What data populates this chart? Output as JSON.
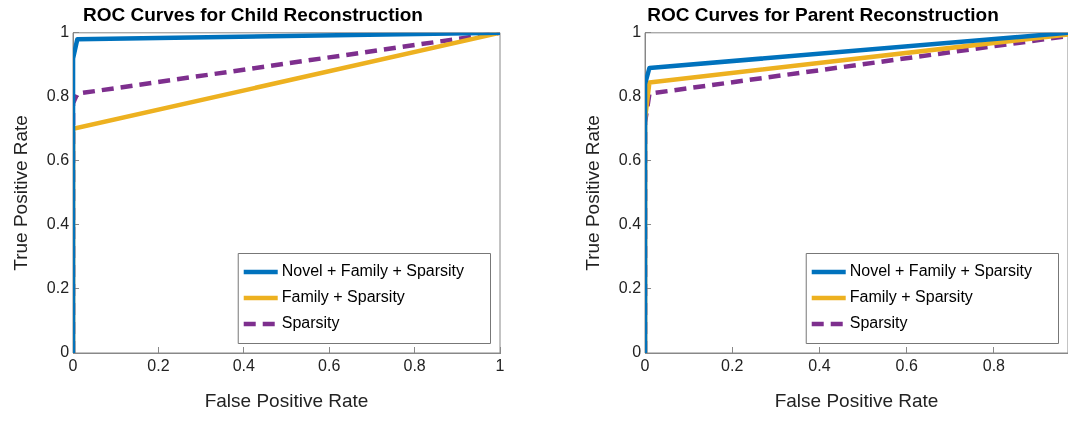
{
  "chart_data": [
    {
      "type": "line",
      "title": "ROC Curves for Child Reconstruction",
      "xlabel": "False Positive Rate",
      "ylabel": "True Positive Rate",
      "xlim": [
        0,
        1
      ],
      "ylim": [
        0,
        1
      ],
      "xticks": [
        0,
        0.2,
        0.4,
        0.6,
        0.8,
        1
      ],
      "yticks": [
        0,
        0.2,
        0.4,
        0.6,
        0.8,
        1
      ],
      "grid": false,
      "legend": "bottom right",
      "marker": "none",
      "series": [
        {
          "name": "Novel + Family + Sparsity",
          "color": "#0072bd",
          "x": [
            0,
            0,
            0.01,
            1
          ],
          "values": [
            0,
            0.92,
            0.98,
            1
          ]
        },
        {
          "name": "Family + Sparsity",
          "color": "#edb120",
          "x": [
            0,
            0,
            1
          ],
          "values": [
            0,
            0.7,
            1
          ]
        },
        {
          "name": "Sparsity",
          "color": "#7e2f8e",
          "line_style": "dashed",
          "x": [
            0,
            0,
            0.01,
            1
          ],
          "values": [
            0,
            0.78,
            0.81,
            1
          ]
        }
      ]
    },
    {
      "type": "line",
      "title": "ROC Curves for Parent Reconstruction",
      "xlabel": "False Positive Rate",
      "ylabel": "True Positive Rate",
      "xlim": [
        0,
        0.97
      ],
      "ylim": [
        0,
        1
      ],
      "xticks": [
        0,
        0.2,
        0.4,
        0.6,
        0.8
      ],
      "yticks": [
        0,
        0.2,
        0.4,
        0.6,
        0.8,
        1
      ],
      "grid": false,
      "legend": "bottom right",
      "marker": "none",
      "series": [
        {
          "name": "Novel + Family + Sparsity",
          "color": "#0072bd",
          "x": [
            0,
            0,
            0.01,
            0.97
          ],
          "values": [
            0,
            0.84,
            0.89,
            1
          ]
        },
        {
          "name": "Family + Sparsity",
          "color": "#edb120",
          "x": [
            0,
            0,
            0.01,
            0.97
          ],
          "values": [
            0,
            0.73,
            0.845,
            0.995
          ]
        },
        {
          "name": "Sparsity",
          "color": "#7e2f8e",
          "line_style": "dashed",
          "x": [
            0,
            0,
            0.01,
            0.97
          ],
          "values": [
            0,
            0.72,
            0.81,
            0.99
          ]
        }
      ]
    }
  ]
}
